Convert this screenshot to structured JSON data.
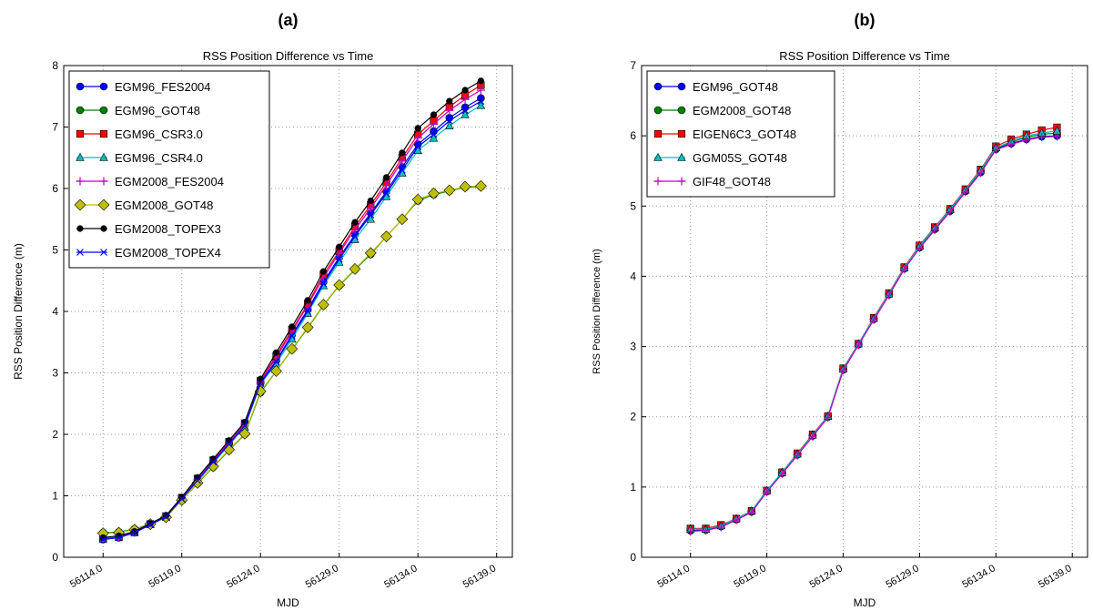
{
  "chart_data": [
    {
      "type": "line",
      "panel_label": "(a)",
      "title": "RSS Position Difference vs Time",
      "x_label": "MJD",
      "y_label": "RSS Position Difference (m)",
      "x": [
        56114,
        56115,
        56116,
        56117,
        56118,
        56119,
        56120,
        56121,
        56122,
        56123,
        56124,
        56125,
        56126,
        56127,
        56128,
        56129,
        56130,
        56131,
        56132,
        56133,
        56134,
        56135,
        56136,
        56137,
        56138
      ],
      "xlim": [
        56111.5,
        56140
      ],
      "xticks": [
        {
          "value": 56114,
          "label": "56114.0"
        },
        {
          "value": 56119,
          "label": "56119.0"
        },
        {
          "value": 56124,
          "label": "56124.0"
        },
        {
          "value": 56129,
          "label": "56129.0"
        },
        {
          "value": 56134,
          "label": "56134.0"
        },
        {
          "value": 56139,
          "label": "56139.0"
        }
      ],
      "ylim": [
        0,
        8
      ],
      "yticks": [
        0,
        1,
        2,
        3,
        4,
        5,
        6,
        7,
        8
      ],
      "grid": true,
      "legend": "upper left",
      "series": [
        {
          "name": "EGM96_FES2004",
          "color": "#0000ff",
          "marker": "circle",
          "values": [
            0.29,
            0.32,
            0.4,
            0.53,
            0.66,
            0.95,
            1.25,
            1.55,
            1.85,
            2.15,
            2.84,
            3.2,
            3.62,
            4.03,
            4.48,
            4.88,
            5.25,
            5.6,
            5.95,
            6.35,
            6.72,
            6.93,
            7.15,
            7.32,
            7.47
          ]
        },
        {
          "name": "EGM96_GOT48",
          "color": "#008000",
          "marker": "circle",
          "values": [
            0.4,
            0.41,
            0.46,
            0.54,
            0.65,
            0.93,
            1.2,
            1.47,
            1.74,
            2.0,
            2.68,
            3.03,
            3.38,
            3.73,
            4.1,
            4.42,
            4.68,
            4.93,
            5.22,
            5.5,
            5.8,
            5.9,
            5.96,
            6.02,
            6.03
          ]
        },
        {
          "name": "EGM96_CSR3.0",
          "color": "#ff0000",
          "marker": "square",
          "values": [
            0.3,
            0.33,
            0.41,
            0.54,
            0.67,
            0.97,
            1.28,
            1.58,
            1.88,
            2.18,
            2.87,
            3.28,
            3.7,
            4.12,
            4.6,
            4.98,
            5.38,
            5.73,
            6.1,
            6.5,
            6.88,
            7.1,
            7.33,
            7.52,
            7.68
          ]
        },
        {
          "name": "EGM96_CSR4.0",
          "color": "#00bfbf",
          "marker": "triangle",
          "values": [
            0.3,
            0.33,
            0.4,
            0.53,
            0.65,
            0.94,
            1.24,
            1.53,
            1.83,
            2.12,
            2.82,
            3.15,
            3.55,
            3.97,
            4.42,
            4.8,
            5.17,
            5.5,
            5.87,
            6.25,
            6.62,
            6.82,
            7.02,
            7.2,
            7.35
          ]
        },
        {
          "name": "EGM2008_FES2004",
          "color": "#bf00bf",
          "marker": "plus",
          "values": [
            0.3,
            0.33,
            0.41,
            0.54,
            0.67,
            0.96,
            1.27,
            1.57,
            1.87,
            2.17,
            2.86,
            3.25,
            3.67,
            4.1,
            4.55,
            4.95,
            5.33,
            5.68,
            6.05,
            6.45,
            6.82,
            7.05,
            7.27,
            7.45,
            7.6
          ]
        },
        {
          "name": "EGM2008_GOT48",
          "color": "#bfbf00",
          "marker": "diamond",
          "values": [
            0.39,
            0.4,
            0.45,
            0.54,
            0.65,
            0.93,
            1.21,
            1.48,
            1.75,
            2.01,
            2.7,
            3.03,
            3.39,
            3.74,
            4.11,
            4.43,
            4.69,
            4.95,
            5.22,
            5.5,
            5.82,
            5.92,
            5.97,
            6.03,
            6.04
          ]
        },
        {
          "name": "EGM2008_TOPEX3",
          "color": "#000000",
          "marker": "hexagon",
          "values": [
            0.32,
            0.35,
            0.42,
            0.55,
            0.68,
            0.98,
            1.3,
            1.6,
            1.9,
            2.2,
            2.9,
            3.33,
            3.75,
            4.18,
            4.65,
            5.05,
            5.45,
            5.8,
            6.18,
            6.58,
            6.98,
            7.2,
            7.42,
            7.6,
            7.75
          ]
        },
        {
          "name": "EGM2008_TOPEX4",
          "color": "#0000ff",
          "marker": "x",
          "values": [
            0.29,
            0.32,
            0.4,
            0.53,
            0.66,
            0.95,
            1.25,
            1.55,
            1.84,
            2.14,
            2.83,
            3.18,
            3.6,
            4.0,
            4.45,
            4.85,
            5.22,
            5.57,
            5.92,
            6.3,
            6.68,
            6.88,
            7.1,
            7.27,
            7.42
          ]
        }
      ]
    },
    {
      "type": "line",
      "panel_label": "(b)",
      "title": "RSS Position Difference vs Time",
      "x_label": "MJD",
      "y_label": "RSS Position Difference (m)",
      "x": [
        56114,
        56115,
        56116,
        56117,
        56118,
        56119,
        56120,
        56121,
        56122,
        56123,
        56124,
        56125,
        56126,
        56127,
        56128,
        56129,
        56130,
        56131,
        56132,
        56133,
        56134,
        56135,
        56136,
        56137,
        56138
      ],
      "xlim": [
        56110.8,
        56140
      ],
      "xticks": [
        {
          "value": 56114,
          "label": "56114.0"
        },
        {
          "value": 56119,
          "label": "56119.0"
        },
        {
          "value": 56124,
          "label": "56124.0"
        },
        {
          "value": 56129,
          "label": "56129.0"
        },
        {
          "value": 56134,
          "label": "56134.0"
        },
        {
          "value": 56139,
          "label": "56139.0"
        }
      ],
      "ylim": [
        0,
        7
      ],
      "yticks": [
        0,
        1,
        2,
        3,
        4,
        5,
        6,
        7
      ],
      "grid": true,
      "legend": "upper left",
      "series": [
        {
          "name": "EGM96_GOT48",
          "color": "#0000ff",
          "marker": "circle",
          "values": [
            0.38,
            0.39,
            0.44,
            0.54,
            0.65,
            0.94,
            1.2,
            1.46,
            1.73,
            2.0,
            2.67,
            3.03,
            3.39,
            3.74,
            4.11,
            4.41,
            4.67,
            4.93,
            5.21,
            5.48,
            5.81,
            5.89,
            5.95,
            5.99,
            6.0
          ]
        },
        {
          "name": "EGM2008_GOT48",
          "color": "#008000",
          "marker": "circle",
          "values": [
            0.4,
            0.4,
            0.45,
            0.54,
            0.65,
            0.94,
            1.2,
            1.47,
            1.74,
            2.0,
            2.68,
            3.03,
            3.39,
            3.75,
            4.11,
            4.42,
            4.68,
            4.94,
            5.22,
            5.5,
            5.82,
            5.91,
            5.98,
            6.02,
            6.04
          ]
        },
        {
          "name": "EIGEN6C3_GOT48",
          "color": "#ff0000",
          "marker": "square",
          "values": [
            0.41,
            0.41,
            0.46,
            0.55,
            0.66,
            0.95,
            1.21,
            1.48,
            1.75,
            2.01,
            2.69,
            3.04,
            3.41,
            3.76,
            4.13,
            4.44,
            4.7,
            4.96,
            5.24,
            5.52,
            5.85,
            5.95,
            6.02,
            6.08,
            6.12
          ]
        },
        {
          "name": "GGM05S_GOT48",
          "color": "#00bfbf",
          "marker": "triangle",
          "values": [
            0.4,
            0.4,
            0.45,
            0.55,
            0.66,
            0.95,
            1.21,
            1.47,
            1.74,
            2.01,
            2.68,
            3.04,
            3.4,
            3.75,
            4.12,
            4.43,
            4.69,
            4.95,
            5.23,
            5.51,
            5.83,
            5.92,
            6.0,
            6.04,
            6.07
          ]
        },
        {
          "name": "GIF48_GOT48",
          "color": "#bf00bf",
          "marker": "plus",
          "values": [
            0.37,
            0.38,
            0.43,
            0.53,
            0.64,
            0.93,
            1.19,
            1.45,
            1.72,
            1.99,
            2.66,
            3.02,
            3.38,
            3.73,
            4.1,
            4.4,
            4.66,
            4.92,
            5.2,
            5.47,
            5.8,
            5.88,
            5.94,
            5.98,
            5.99
          ]
        }
      ]
    }
  ]
}
